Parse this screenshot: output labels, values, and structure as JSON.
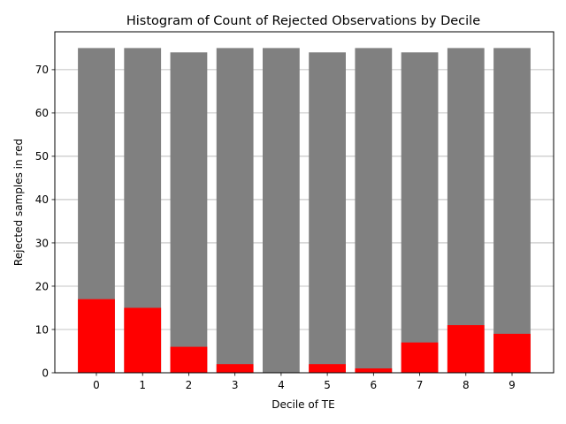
{
  "chart_data": {
    "type": "bar",
    "title": "Histogram of Count of Rejected Observations by Decile",
    "xlabel": "Decile of TE",
    "ylabel": "Rejected samples in red",
    "categories": [
      "0",
      "1",
      "2",
      "3",
      "4",
      "5",
      "6",
      "7",
      "8",
      "9"
    ],
    "series": [
      {
        "values": [
          75,
          75,
          74,
          75,
          75,
          74,
          75,
          74,
          75,
          75
        ],
        "color": "#808080"
      },
      {
        "values": [
          17,
          15,
          6,
          2,
          0,
          2,
          1,
          7,
          11,
          9
        ],
        "color": "#ff0000"
      }
    ],
    "yticks": [
      0,
      10,
      20,
      30,
      40,
      50,
      60,
      70
    ],
    "ylim": [
      0,
      78.75
    ],
    "grid": "y",
    "legend": "none"
  }
}
